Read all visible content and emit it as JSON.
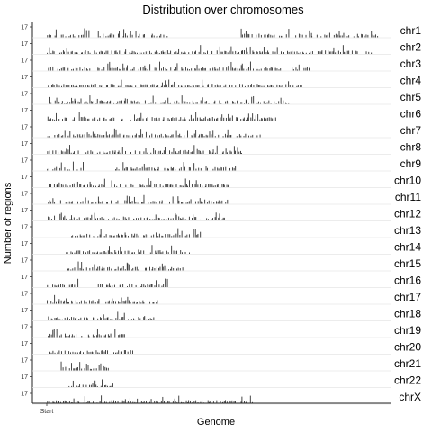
{
  "chart_data": {
    "type": "bar",
    "title": "Distribution over chromosomes",
    "xlabel": "Genome",
    "ylabel": "Number of regions",
    "x_ticks": [
      "Start"
    ],
    "y_tick_label": "17",
    "grid": false,
    "panels": [
      {
        "name": "chr1",
        "length": 1.0
      },
      {
        "name": "chr2",
        "length": 0.975
      },
      {
        "name": "chr3",
        "length": 0.8
      },
      {
        "name": "chr4",
        "length": 0.768
      },
      {
        "name": "chr5",
        "length": 0.728
      },
      {
        "name": "chr6",
        "length": 0.69
      },
      {
        "name": "chr7",
        "length": 0.642
      },
      {
        "name": "chr8",
        "length": 0.588
      },
      {
        "name": "chr9",
        "length": 0.568
      },
      {
        "name": "chr10",
        "length": 0.547
      },
      {
        "name": "chr11",
        "length": 0.545
      },
      {
        "name": "chr12",
        "length": 0.537
      },
      {
        "name": "chr13",
        "length": 0.462
      },
      {
        "name": "chr14",
        "length": 0.432
      },
      {
        "name": "chr15",
        "length": 0.412
      },
      {
        "name": "chr16",
        "length": 0.364
      },
      {
        "name": "chr17",
        "length": 0.335
      },
      {
        "name": "chr18",
        "length": 0.322
      },
      {
        "name": "chr19",
        "length": 0.236
      },
      {
        "name": "chr20",
        "length": 0.259
      },
      {
        "name": "chr21",
        "length": 0.186
      },
      {
        "name": "chr22",
        "length": 0.205
      },
      {
        "name": "chrX",
        "length": 0.624
      }
    ],
    "gaps": {
      "chr1": [
        [
          0.37,
          0.58
        ]
      ],
      "chr9": [
        [
          0.21,
          0.36
        ]
      ],
      "chr13": [
        [
          0.0,
          0.12
        ]
      ],
      "chr14": [
        [
          0.0,
          0.13
        ]
      ],
      "chr15": [
        [
          0.0,
          0.15
        ]
      ],
      "chr16": [
        [
          0.26,
          0.36
        ]
      ],
      "chr21": [
        [
          0.0,
          0.22
        ]
      ],
      "chr22": [
        [
          0.0,
          0.28
        ]
      ]
    },
    "colors": {
      "bars": "#333333",
      "axis": "#222222",
      "strip_line": "#e6e6e6"
    }
  }
}
